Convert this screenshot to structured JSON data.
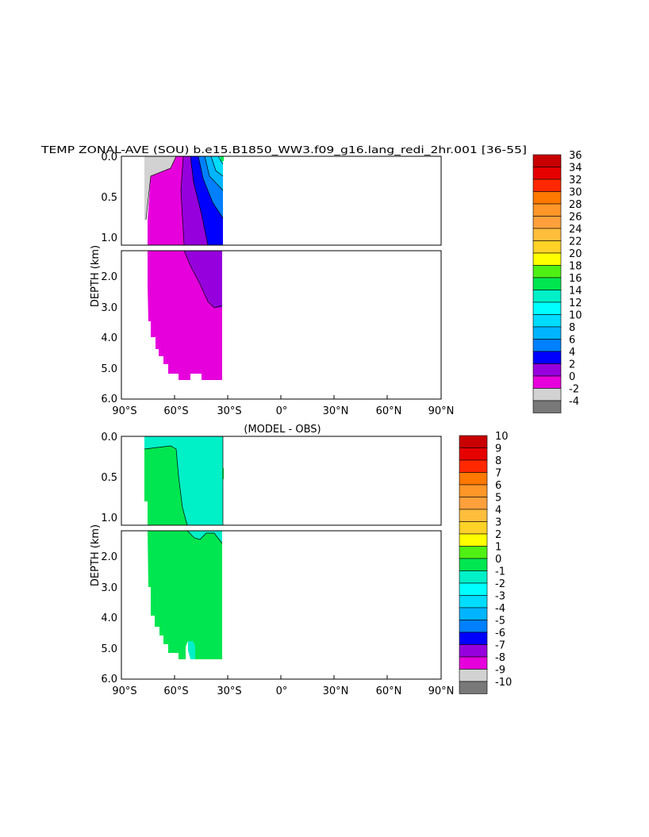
{
  "chart_data": [
    {
      "type": "heatmap",
      "title": "TEMP ZONAL-AVE (SOU) b.e15.B1850_WW3.f09_g16.lang_redi_2hr.001 [36-55]",
      "ylabel": "DEPTH (km)",
      "x_ticks": [
        "90°S",
        "60°S",
        "30°S",
        "0°",
        "30°N",
        "60°N",
        "90°N"
      ],
      "x_tick_values": [
        -90,
        -60,
        -30,
        0,
        30,
        60,
        90
      ],
      "xlim": [
        -90,
        90
      ],
      "upper_y_ticks": [
        "0.0",
        "0.5",
        "1.0"
      ],
      "upper_y_tick_values": [
        0,
        0.5,
        1.0
      ],
      "upper_ylim": [
        0,
        1.0
      ],
      "lower_y_ticks": [
        "2.0",
        "3.0",
        "4.0",
        "5.0",
        "6.0"
      ],
      "lower_y_tick_values": [
        2,
        3,
        4,
        5,
        6
      ],
      "lower_ylim": [
        1.0,
        6.0
      ],
      "colorbar_labels": [
        "36",
        "34",
        "32",
        "30",
        "28",
        "26",
        "24",
        "22",
        "20",
        "18",
        "16",
        "14",
        "12",
        "10",
        "8",
        "6",
        "4",
        "2",
        "0",
        "-2",
        "-4"
      ],
      "colorbar_colors": [
        "#c80000",
        "#e60000",
        "#ff2800",
        "#ff7800",
        "#ff9628",
        "#ffa03c",
        "#ffbe3c",
        "#ffd228",
        "#ffff00",
        "#50f014",
        "#00e650",
        "#00f0c8",
        "#00ffff",
        "#00dcff",
        "#00b4ff",
        "#0080ff",
        "#0000ff",
        "#9600dc",
        "#e600dc",
        "#d2d2d2",
        "#787878"
      ]
    },
    {
      "type": "heatmap",
      "title": "(MODEL - OBS)",
      "ylabel": "DEPTH (km)",
      "x_ticks": [
        "90°S",
        "60°S",
        "30°S",
        "0°",
        "30°N",
        "60°N",
        "90°N"
      ],
      "x_tick_values": [
        -90,
        -60,
        -30,
        0,
        30,
        60,
        90
      ],
      "xlim": [
        -90,
        90
      ],
      "upper_y_ticks": [
        "0.0",
        "0.5",
        "1.0"
      ],
      "upper_y_tick_values": [
        0,
        0.5,
        1.0
      ],
      "upper_ylim": [
        0,
        1.0
      ],
      "lower_y_ticks": [
        "2.0",
        "3.0",
        "4.0",
        "5.0",
        "6.0"
      ],
      "lower_y_tick_values": [
        2,
        3,
        4,
        5,
        6
      ],
      "lower_ylim": [
        1.0,
        6.0
      ],
      "colorbar_labels": [
        "10",
        "9",
        "8",
        "7",
        "6",
        "5",
        "4",
        "3",
        "2",
        "1",
        "0",
        "-1",
        "-2",
        "-3",
        "-4",
        "-5",
        "-6",
        "-7",
        "-8",
        "-9",
        "-10"
      ],
      "colorbar_colors": [
        "#c80000",
        "#e60000",
        "#ff2800",
        "#ff7800",
        "#ff9628",
        "#ffa03c",
        "#ffbe3c",
        "#ffd228",
        "#ffff00",
        "#50f014",
        "#00e650",
        "#00f0c8",
        "#00ffff",
        "#00dcff",
        "#00b4ff",
        "#0080ff",
        "#0000ff",
        "#9600dc",
        "#e600dc",
        "#d2d2d2",
        "#787878"
      ]
    }
  ]
}
